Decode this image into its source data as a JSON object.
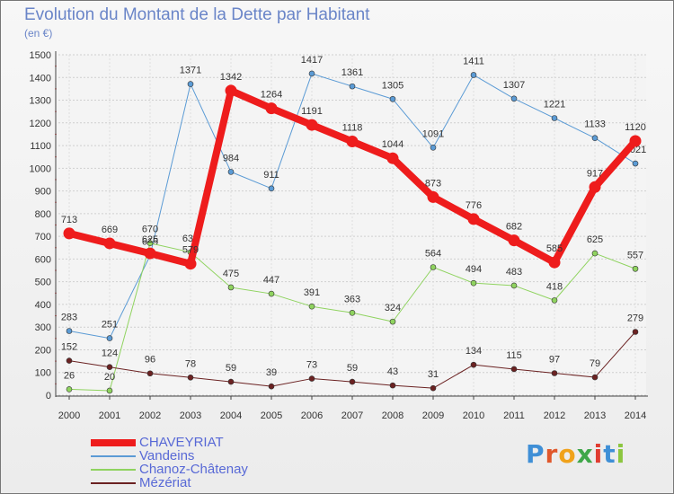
{
  "header": {
    "title": "Evolution du Montant de la Dette par Habitant",
    "unit": "(en €)"
  },
  "brand": {
    "letters": [
      {
        "ch": "P",
        "color": "#3f8fd6"
      },
      {
        "ch": "r",
        "color": "#e0572b"
      },
      {
        "ch": "o",
        "color": "#f0a21b"
      },
      {
        "ch": "x",
        "color": "#3fa74a"
      },
      {
        "ch": "i",
        "color": "#e03c31"
      },
      {
        "ch": "t",
        "color": "#3f8fd6"
      },
      {
        "ch": "i",
        "color": "#8cc63f"
      }
    ]
  },
  "chart_data": {
    "type": "line",
    "title": "Evolution du Montant de la Dette par Habitant",
    "subtitle": "(en €)",
    "x": [
      "2000",
      "2001",
      "2002",
      "2003",
      "2004",
      "2005",
      "2006",
      "2007",
      "2008",
      "2009",
      "2010",
      "2011",
      "2012",
      "2013",
      "2014"
    ],
    "ylim": [
      0,
      1500
    ],
    "yticks": [
      0,
      100,
      200,
      300,
      400,
      500,
      600,
      700,
      800,
      900,
      1000,
      1100,
      1200,
      1300,
      1400,
      1500
    ],
    "grid": true,
    "legend_position": "bottom-left",
    "series": [
      {
        "name": "CHAVEYRIAT",
        "color": "#ee1c1c",
        "width": 8,
        "values": [
          713,
          669,
          625,
          579,
          1342,
          1264,
          1191,
          1118,
          1044,
          873,
          776,
          682,
          585,
          917,
          1120
        ]
      },
      {
        "name": "Vandeins",
        "color": "#5b9bd5",
        "width": 1,
        "values": [
          283,
          251,
          615,
          1371,
          984,
          911,
          1417,
          1361,
          1305,
          1091,
          1411,
          1307,
          1221,
          1133,
          1021
        ]
      },
      {
        "name": "Chanoz-Châtenay",
        "color": "#8fd35f",
        "width": 1,
        "values": [
          26,
          20,
          670,
          630,
          475,
          447,
          391,
          363,
          324,
          564,
          494,
          483,
          418,
          625,
          557
        ]
      },
      {
        "name": "Mézériat",
        "color": "#6b2222",
        "width": 1,
        "values": [
          152,
          124,
          96,
          78,
          59,
          39,
          73,
          59,
          43,
          31,
          134,
          115,
          97,
          79,
          279
        ]
      }
    ]
  }
}
